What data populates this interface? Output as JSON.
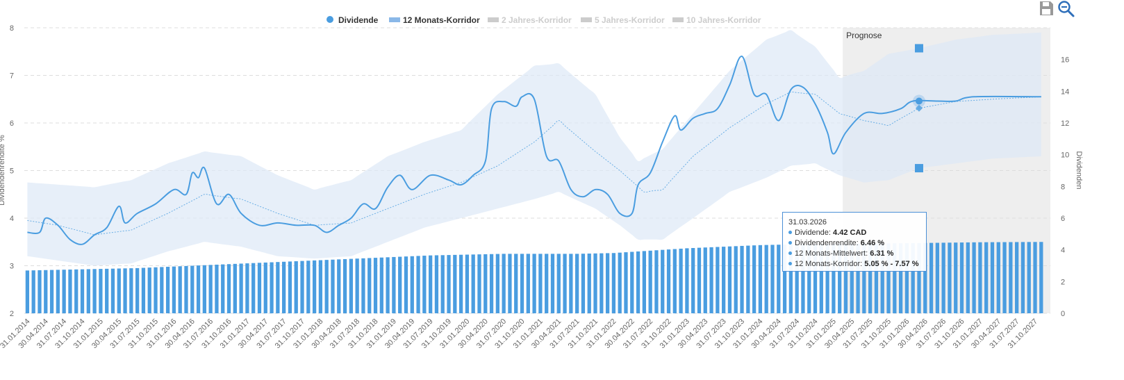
{
  "chart_data": {
    "type": "line",
    "legend": [
      "Dividende",
      "12 Monats-Korridor",
      "2 Jahres-Korridor",
      "5 Jahres-Korridor",
      "10 Jahres-Korridor"
    ],
    "legend_active": [
      true,
      true,
      false,
      false,
      false
    ],
    "legend_placement": "top-center",
    "ylabel_left": "Dividendenrendite %",
    "ylabel_right": "Dividenden",
    "y_left_ticks": [
      "2",
      "3",
      "4",
      "5",
      "6",
      "7",
      "8"
    ],
    "y_right_ticks": [
      "0",
      "2",
      "4",
      "6",
      "8",
      "10",
      "12",
      "14",
      "16"
    ],
    "ylim_left": [
      2,
      8
    ],
    "ylim_right": [
      0,
      18
    ],
    "grid": true,
    "forecast_label": "Prognose",
    "forecast_start": "2025-03",
    "x_labels": [
      "31.01.2014",
      "30.04.2014",
      "31.07.2014",
      "31.10.2014",
      "31.01.2015",
      "30.04.2015",
      "31.07.2015",
      "31.10.2015",
      "31.01.2016",
      "30.04.2016",
      "31.07.2016",
      "31.10.2016",
      "31.01.2017",
      "30.04.2017",
      "31.07.2017",
      "31.10.2017",
      "31.01.2018",
      "30.04.2018",
      "31.07.2018",
      "31.10.2018",
      "31.01.2019",
      "30.04.2019",
      "31.07.2019",
      "31.10.2019",
      "31.01.2020",
      "30.04.2020",
      "31.07.2020",
      "31.10.2020",
      "31.01.2021",
      "30.04.2021",
      "31.07.2021",
      "31.10.2021",
      "31.01.2022",
      "30.04.2022",
      "31.07.2022",
      "31.10.2022",
      "31.01.2023",
      "30.04.2023",
      "31.07.2023",
      "31.10.2023",
      "31.01.2024",
      "30.04.2024",
      "31.07.2024",
      "31.10.2024",
      "31.01.2025",
      "30.04.2025",
      "31.07.2025",
      "31.10.2025",
      "31.01.2026",
      "30.04.2026",
      "31.07.2026",
      "31.10.2026",
      "31.01.2027",
      "30.04.2027",
      "31.07.2027",
      "31.10.2027"
    ],
    "series": [
      {
        "name": "Dividende",
        "axis": "right",
        "type": "bar",
        "points": [
          [
            "2014-01",
            2.7
          ],
          [
            "2014-07",
            2.75
          ],
          [
            "2015-01",
            2.8
          ],
          [
            "2015-07",
            2.85
          ],
          [
            "2016-01",
            2.95
          ],
          [
            "2016-07",
            3.05
          ],
          [
            "2017-01",
            3.15
          ],
          [
            "2017-07",
            3.25
          ],
          [
            "2018-01",
            3.35
          ],
          [
            "2018-07",
            3.45
          ],
          [
            "2019-01",
            3.55
          ],
          [
            "2019-07",
            3.65
          ],
          [
            "2020-01",
            3.7
          ],
          [
            "2020-07",
            3.75
          ],
          [
            "2021-01",
            3.75
          ],
          [
            "2021-07",
            3.75
          ],
          [
            "2022-01",
            3.8
          ],
          [
            "2022-07",
            3.95
          ],
          [
            "2023-01",
            4.1
          ],
          [
            "2023-07",
            4.2
          ],
          [
            "2024-01",
            4.3
          ],
          [
            "2024-07",
            4.35
          ],
          [
            "2025-01",
            4.38
          ],
          [
            "2025-07",
            4.4
          ],
          [
            "2026-01",
            4.42
          ],
          [
            "2026-07",
            4.45
          ],
          [
            "2027-01",
            4.48
          ],
          [
            "2027-11",
            4.5
          ]
        ]
      },
      {
        "name": "Dividendenrendite",
        "axis": "left",
        "type": "line",
        "points": [
          [
            "2014-01",
            3.7
          ],
          [
            "2014-03",
            3.7
          ],
          [
            "2014-04",
            4.0
          ],
          [
            "2014-06",
            3.85
          ],
          [
            "2014-08",
            3.55
          ],
          [
            "2014-10",
            3.45
          ],
          [
            "2014-12",
            3.65
          ],
          [
            "2015-02",
            3.8
          ],
          [
            "2015-04",
            4.25
          ],
          [
            "2015-05",
            3.9
          ],
          [
            "2015-07",
            4.1
          ],
          [
            "2015-10",
            4.3
          ],
          [
            "2016-01",
            4.6
          ],
          [
            "2016-03",
            4.5
          ],
          [
            "2016-04",
            4.95
          ],
          [
            "2016-05",
            4.85
          ],
          [
            "2016-06",
            5.05
          ],
          [
            "2016-08",
            4.3
          ],
          [
            "2016-10",
            4.5
          ],
          [
            "2016-12",
            4.1
          ],
          [
            "2017-03",
            3.85
          ],
          [
            "2017-06",
            3.9
          ],
          [
            "2017-09",
            3.85
          ],
          [
            "2017-12",
            3.85
          ],
          [
            "2018-02",
            3.7
          ],
          [
            "2018-04",
            3.85
          ],
          [
            "2018-06",
            4.0
          ],
          [
            "2018-08",
            4.3
          ],
          [
            "2018-10",
            4.2
          ],
          [
            "2018-12",
            4.65
          ],
          [
            "2019-02",
            4.9
          ],
          [
            "2019-04",
            4.6
          ],
          [
            "2019-07",
            4.9
          ],
          [
            "2019-10",
            4.8
          ],
          [
            "2019-12",
            4.7
          ],
          [
            "2020-02",
            4.9
          ],
          [
            "2020-04",
            5.2
          ],
          [
            "2020-05",
            6.3
          ],
          [
            "2020-07",
            6.45
          ],
          [
            "2020-09",
            6.35
          ],
          [
            "2020-10",
            6.55
          ],
          [
            "2020-12",
            6.5
          ],
          [
            "2021-02",
            5.3
          ],
          [
            "2021-04",
            5.2
          ],
          [
            "2021-06",
            4.6
          ],
          [
            "2021-08",
            4.45
          ],
          [
            "2021-10",
            4.6
          ],
          [
            "2021-12",
            4.5
          ],
          [
            "2022-02",
            4.1
          ],
          [
            "2022-04",
            4.1
          ],
          [
            "2022-05",
            4.7
          ],
          [
            "2022-07",
            4.95
          ],
          [
            "2022-09",
            5.6
          ],
          [
            "2022-11",
            6.15
          ],
          [
            "2022-12",
            5.85
          ],
          [
            "2023-02",
            6.1
          ],
          [
            "2023-04",
            6.2
          ],
          [
            "2023-06",
            6.3
          ],
          [
            "2023-08",
            6.8
          ],
          [
            "2023-10",
            7.4
          ],
          [
            "2023-12",
            6.6
          ],
          [
            "2024-02",
            6.6
          ],
          [
            "2024-04",
            6.05
          ],
          [
            "2024-06",
            6.7
          ],
          [
            "2024-08",
            6.75
          ],
          [
            "2024-10",
            6.4
          ],
          [
            "2024-12",
            5.8
          ],
          [
            "2025-01",
            5.35
          ],
          [
            "2025-03",
            5.8
          ],
          [
            "2025-06",
            6.2
          ],
          [
            "2025-09",
            6.2
          ],
          [
            "2025-12",
            6.3
          ],
          [
            "2026-02",
            6.46
          ],
          [
            "2026-06",
            6.46
          ],
          [
            "2026-09",
            6.46
          ],
          [
            "2026-12",
            6.55
          ],
          [
            "2027-11",
            6.55
          ]
        ]
      },
      {
        "name": "12 Monats-Mittelwert",
        "axis": "left",
        "type": "line",
        "points": [
          [
            "2014-01",
            3.95
          ],
          [
            "2014-06",
            3.85
          ],
          [
            "2014-12",
            3.65
          ],
          [
            "2015-06",
            3.75
          ],
          [
            "2015-12",
            4.1
          ],
          [
            "2016-06",
            4.5
          ],
          [
            "2016-12",
            4.4
          ],
          [
            "2017-06",
            4.1
          ],
          [
            "2017-12",
            3.85
          ],
          [
            "2018-06",
            3.9
          ],
          [
            "2018-12",
            4.2
          ],
          [
            "2019-06",
            4.5
          ],
          [
            "2019-12",
            4.75
          ],
          [
            "2020-06",
            5.1
          ],
          [
            "2020-12",
            5.6
          ],
          [
            "2021-04",
            6.05
          ],
          [
            "2021-10",
            5.4
          ],
          [
            "2022-02",
            5.0
          ],
          [
            "2022-06",
            4.55
          ],
          [
            "2022-09",
            4.6
          ],
          [
            "2023-02",
            5.3
          ],
          [
            "2023-08",
            5.9
          ],
          [
            "2024-02",
            6.4
          ],
          [
            "2024-06",
            6.65
          ],
          [
            "2024-10",
            6.6
          ],
          [
            "2025-02",
            6.2
          ],
          [
            "2025-06",
            6.05
          ],
          [
            "2025-10",
            5.95
          ],
          [
            "2026-03",
            6.31
          ],
          [
            "2026-09",
            6.45
          ],
          [
            "2027-03",
            6.5
          ],
          [
            "2027-11",
            6.55
          ]
        ]
      }
    ],
    "corridor_12m": [
      [
        "2014-01",
        3.2,
        4.75
      ],
      [
        "2014-12",
        3.0,
        4.65
      ],
      [
        "2015-06",
        3.05,
        4.8
      ],
      [
        "2015-12",
        3.3,
        5.15
      ],
      [
        "2016-06",
        3.5,
        5.4
      ],
      [
        "2016-12",
        3.4,
        5.3
      ],
      [
        "2017-06",
        3.2,
        4.9
      ],
      [
        "2017-12",
        3.15,
        4.6
      ],
      [
        "2018-06",
        3.2,
        4.8
      ],
      [
        "2018-12",
        3.5,
        5.3
      ],
      [
        "2019-06",
        3.8,
        5.6
      ],
      [
        "2019-12",
        4.0,
        5.85
      ],
      [
        "2020-06",
        4.2,
        6.6
      ],
      [
        "2020-12",
        4.4,
        7.2
      ],
      [
        "2021-04",
        4.55,
        7.25
      ],
      [
        "2021-10",
        4.2,
        6.6
      ],
      [
        "2022-02",
        3.85,
        5.7
      ],
      [
        "2022-05",
        3.55,
        5.2
      ],
      [
        "2022-09",
        3.55,
        5.45
      ],
      [
        "2023-02",
        4.0,
        6.2
      ],
      [
        "2023-08",
        4.55,
        7.1
      ],
      [
        "2024-02",
        4.85,
        7.75
      ],
      [
        "2024-06",
        5.1,
        7.95
      ],
      [
        "2024-10",
        5.15,
        7.6
      ],
      [
        "2025-02",
        4.9,
        6.95
      ],
      [
        "2025-06",
        4.75,
        7.1
      ],
      [
        "2025-10",
        4.8,
        7.45
      ],
      [
        "2026-03",
        5.05,
        7.57
      ],
      [
        "2026-09",
        5.15,
        7.75
      ],
      [
        "2027-03",
        5.25,
        7.85
      ],
      [
        "2027-11",
        5.3,
        7.9
      ]
    ],
    "highlight": {
      "date": "2026-03",
      "markers": {
        "upper": 7.57,
        "value": 6.46,
        "mean": 6.31,
        "lower": 5.05
      }
    },
    "tooltip": {
      "title": "31.03.2026",
      "rows": [
        {
          "label": "Dividende: ",
          "value": "4.42 CAD"
        },
        {
          "label": "Dividendenrendite: ",
          "value": "6.46 %"
        },
        {
          "label": "12 Monats-Mittelwert: ",
          "value": "6.31 %"
        },
        {
          "label": "12 Monats-Korridor: ",
          "value": "5.05 % - 7.57 %"
        }
      ]
    }
  },
  "colors": {
    "line": "#4a9de0",
    "bar": "#4a9de0",
    "band": "#dde8f7",
    "forecast_bg": "#eeeeee",
    "grid": "#dddddd",
    "legend_inactive": "#cccccc",
    "legend_active": "#333333"
  },
  "toolbar": {
    "save_icon": "save-icon",
    "zoom_icon": "zoom-out-icon"
  }
}
